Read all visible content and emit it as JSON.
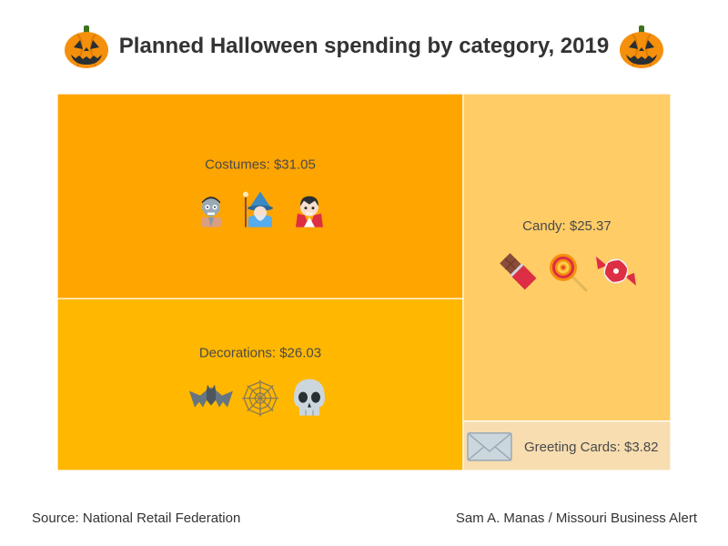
{
  "title": "Planned Halloween spending by category, 2019",
  "icons": {
    "title_left": "jack-o-lantern-icon",
    "title_right": "jack-o-lantern-icon"
  },
  "chart_data": {
    "type": "treemap",
    "title": "Planned Halloween spending by category, 2019",
    "items": [
      {
        "name": "Costumes",
        "value": 31.05,
        "label": "Costumes: $31.05",
        "color": "#ffa500",
        "icons": [
          "zombie-icon",
          "wizard-icon",
          "vampire-icon"
        ]
      },
      {
        "name": "Decorations",
        "value": 26.03,
        "label": "Decorations: $26.03",
        "color": "#ffb700",
        "icons": [
          "bat-icon",
          "spider-web-icon",
          "skull-icon"
        ]
      },
      {
        "name": "Candy",
        "value": 25.37,
        "label": "Candy: $25.37",
        "color": "#ffcc66",
        "icons": [
          "chocolate-bar-icon",
          "lollipop-icon",
          "candy-icon"
        ]
      },
      {
        "name": "Greeting Cards",
        "value": 3.82,
        "label": "Greeting Cards: $3.82",
        "color": "#f7ddb0",
        "icons": [
          "envelope-icon"
        ]
      }
    ]
  },
  "footer": {
    "source": "Source: National Retail Federation",
    "credit": "Sam A. Manas / Missouri Business Alert"
  }
}
